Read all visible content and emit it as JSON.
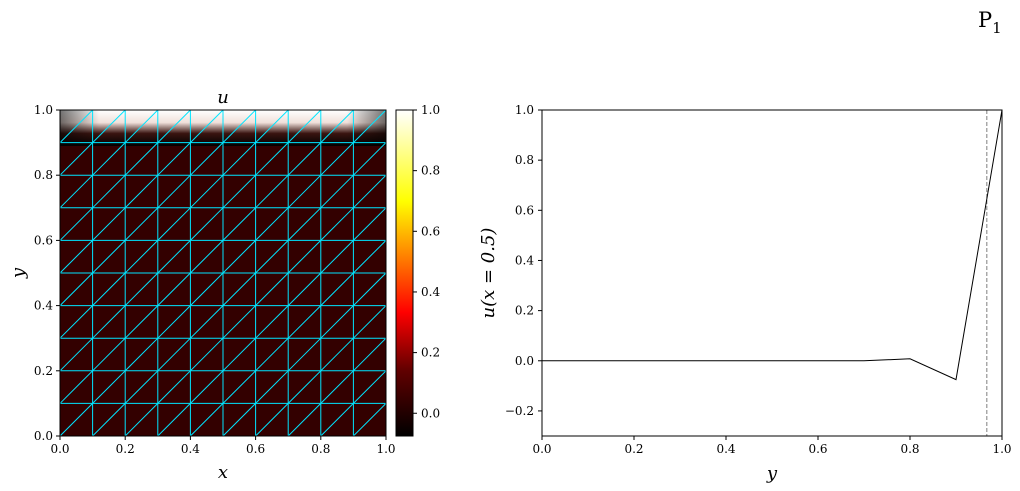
{
  "figure": {
    "label_main": "P",
    "label_sub": "1"
  },
  "chart_data": [
    {
      "type": "heatmap",
      "title": "u",
      "xlabel": "x",
      "ylabel": "y",
      "xlim": [
        0,
        1
      ],
      "ylim": [
        0,
        1
      ],
      "xticks": [
        "0.0",
        "0.2",
        "0.4",
        "0.6",
        "0.8",
        "1.0"
      ],
      "yticks": [
        "0.0",
        "0.2",
        "0.4",
        "0.6",
        "0.8",
        "1.0"
      ],
      "grid_n": 10,
      "mesh": "uniform triangular mesh, 10x10 cells, diagonal split",
      "mesh_color": "#00e5ff",
      "field_description": "u ≈ 0 everywhere except a boundary layer near y = 1 where u rises to 1 (with slight undershoot below y = 1)",
      "colormap": "hot",
      "colorbar": {
        "range": [
          -0.075,
          1.0
        ],
        "ticks": [
          "0.0",
          "0.2",
          "0.4",
          "0.6",
          "0.8",
          "1.0"
        ]
      }
    },
    {
      "type": "line",
      "xlabel": "y",
      "ylabel": "u(x = 0.5)",
      "xlim": [
        0,
        1
      ],
      "ylim": [
        -0.3,
        1.0
      ],
      "xticks": [
        "0.0",
        "0.2",
        "0.4",
        "0.6",
        "0.8",
        "1.0"
      ],
      "yticks": [
        "−0.2",
        "0.0",
        "0.2",
        "0.4",
        "0.6",
        "0.8",
        "1.0"
      ],
      "series": [
        {
          "x": [
            0.0,
            0.1,
            0.2,
            0.3,
            0.4,
            0.5,
            0.6,
            0.7,
            0.8,
            0.9,
            1.0
          ],
          "y": [
            0.0,
            0.0,
            0.0,
            0.0,
            0.0,
            0.0,
            0.0,
            0.0,
            0.008,
            -0.075,
            1.0
          ],
          "color": "#000000"
        }
      ],
      "vline": {
        "x": 0.967,
        "style": "dashed",
        "color": "#808080"
      }
    }
  ]
}
